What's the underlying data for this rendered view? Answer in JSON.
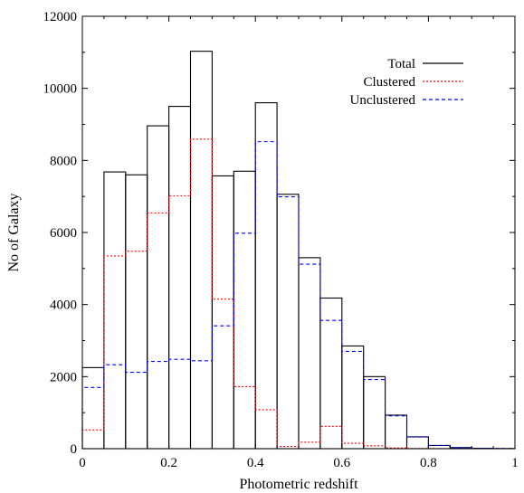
{
  "chart_data": {
    "type": "histogram",
    "xlabel": "Photometric redshift",
    "ylabel": "No of Galaxy",
    "xlim": [
      0,
      1
    ],
    "ylim": [
      0,
      12000
    ],
    "x_ticks": [
      0,
      0.2,
      0.4,
      0.6,
      0.8,
      1
    ],
    "x_tick_labels": [
      "0",
      "0.2",
      "0.4",
      "0.6",
      "0.8",
      "1"
    ],
    "y_ticks": [
      0,
      2000,
      4000,
      6000,
      8000,
      10000,
      12000
    ],
    "y_tick_labels": [
      "0",
      "2000",
      "4000",
      "6000",
      "8000",
      "10000",
      "12000"
    ],
    "bin_edges": [
      0,
      0.05,
      0.1,
      0.15,
      0.2,
      0.25,
      0.3,
      0.35,
      0.4,
      0.45,
      0.5,
      0.55,
      0.6,
      0.65,
      0.7,
      0.75,
      0.8,
      0.85,
      0.9,
      0.95,
      1.0
    ],
    "legend_position": "top-right",
    "series": [
      {
        "name": "Total",
        "color": "#000000",
        "style": "solid",
        "values": [
          2250,
          7680,
          7600,
          8960,
          9500,
          11030,
          7570,
          7700,
          9600,
          7060,
          5300,
          4180,
          2850,
          2000,
          930,
          330,
          90,
          30,
          10,
          5
        ]
      },
      {
        "name": "Clustered",
        "color": "#ff0000",
        "style": "dotted",
        "values": [
          520,
          5350,
          5480,
          6540,
          7020,
          8590,
          4150,
          1720,
          1080,
          60,
          180,
          620,
          150,
          80,
          20,
          5,
          2,
          0,
          0,
          0
        ]
      },
      {
        "name": "Unclustered",
        "color": "#0000ff",
        "style": "dashed",
        "values": [
          1700,
          2330,
          2120,
          2420,
          2480,
          2440,
          3410,
          5980,
          8520,
          6990,
          5120,
          3560,
          2700,
          1920,
          910,
          325,
          88,
          30,
          10,
          5
        ]
      }
    ]
  }
}
